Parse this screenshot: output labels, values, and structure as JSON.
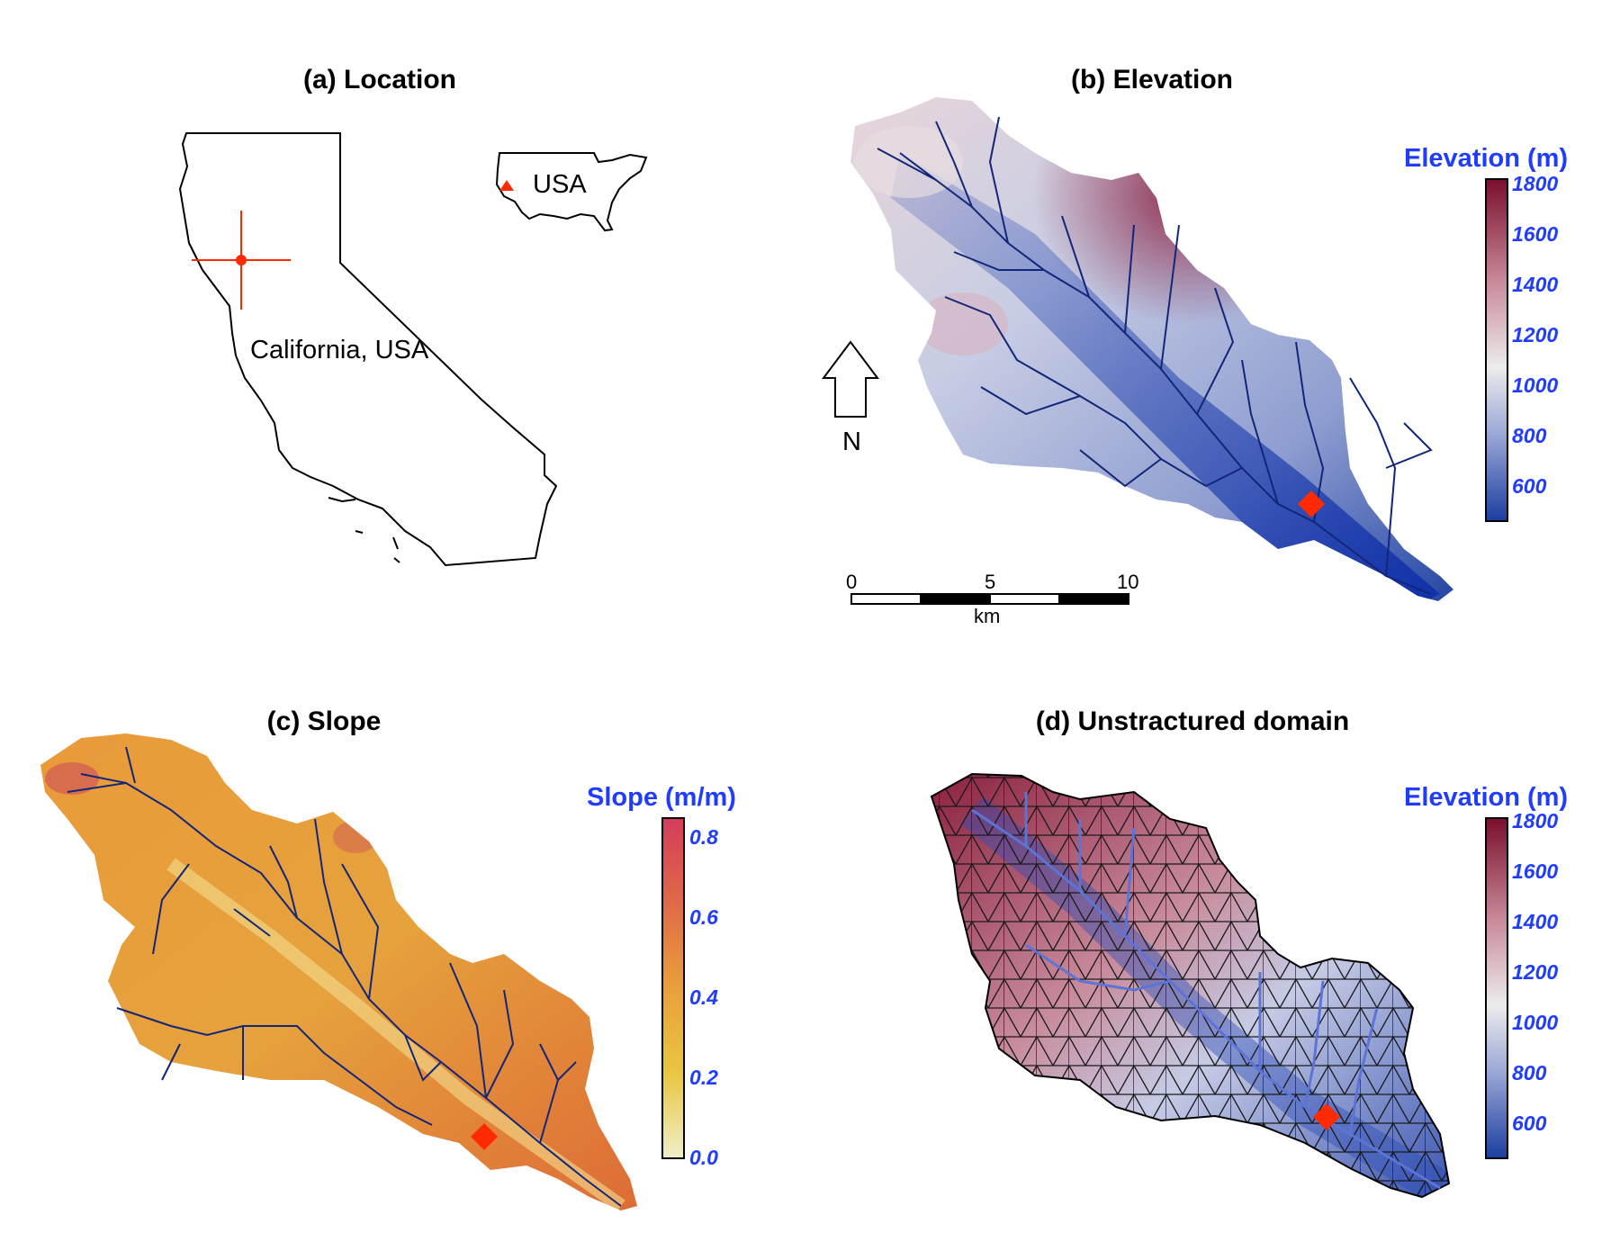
{
  "panels": {
    "a": {
      "title": "(a) Location",
      "state_label": "California, USA",
      "inset_label": "USA"
    },
    "b": {
      "title": "(b) Elevation",
      "legend_title": "Elevation (m)",
      "ticks": [
        "1800",
        "1600",
        "1400",
        "1200",
        "1000",
        "800",
        "600"
      ],
      "north_label": "N",
      "scale": {
        "labels": [
          "0",
          "5",
          "10"
        ],
        "unit": "km"
      }
    },
    "c": {
      "title": "(c) Slope",
      "legend_title": "Slope (m/m)",
      "ticks": [
        "0.8",
        "0.6",
        "0.4",
        "0.2",
        "0.0"
      ]
    },
    "d": {
      "title": "(d) Unstractured domain",
      "legend_title": "Elevation (m)",
      "ticks": [
        "1800",
        "1600",
        "1400",
        "1200",
        "1000",
        "800",
        "600"
      ]
    }
  },
  "colors": {
    "elevation_high": "#7a0f2e",
    "elevation_mid": "#ececec",
    "elevation_low": "#1c3fa0",
    "slope_high": "#d43d5a",
    "slope_mid": "#e9a03a",
    "slope_low": "#f0eec8",
    "stream": "#12267a",
    "outlet": "#ff2a00",
    "legend_text": "#1f3cff"
  }
}
